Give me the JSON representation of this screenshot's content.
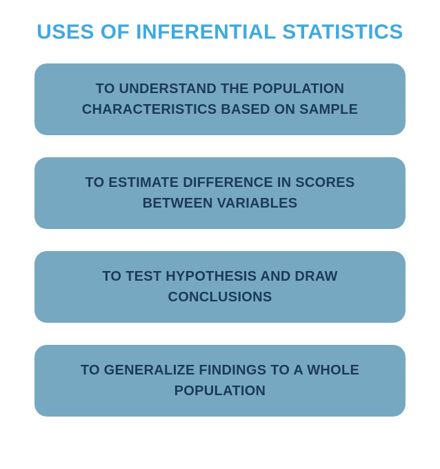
{
  "infographic": {
    "type": "infographic",
    "title": "USES OF INFERENTIAL STATISTICS",
    "title_color": "#3fa9e0",
    "title_fontsize": 30,
    "background_color": "#ffffff",
    "box_background_color": "#77a8c2",
    "box_text_color": "#1c3a57",
    "box_fontsize": 20,
    "box_border_radius": 18,
    "box_gap": 32,
    "items": [
      {
        "label": "TO UNDERSTAND THE POPULATION CHARACTERISTICS BASED ON SAMPLE"
      },
      {
        "label": "TO ESTIMATE DIFFERENCE IN SCORES BETWEEN VARIABLES"
      },
      {
        "label": "TO TEST HYPOTHESIS AND DRAW CONCLUSIONS"
      },
      {
        "label": "TO GENERALIZE FINDINGS TO A WHOLE POPULATION"
      }
    ]
  }
}
